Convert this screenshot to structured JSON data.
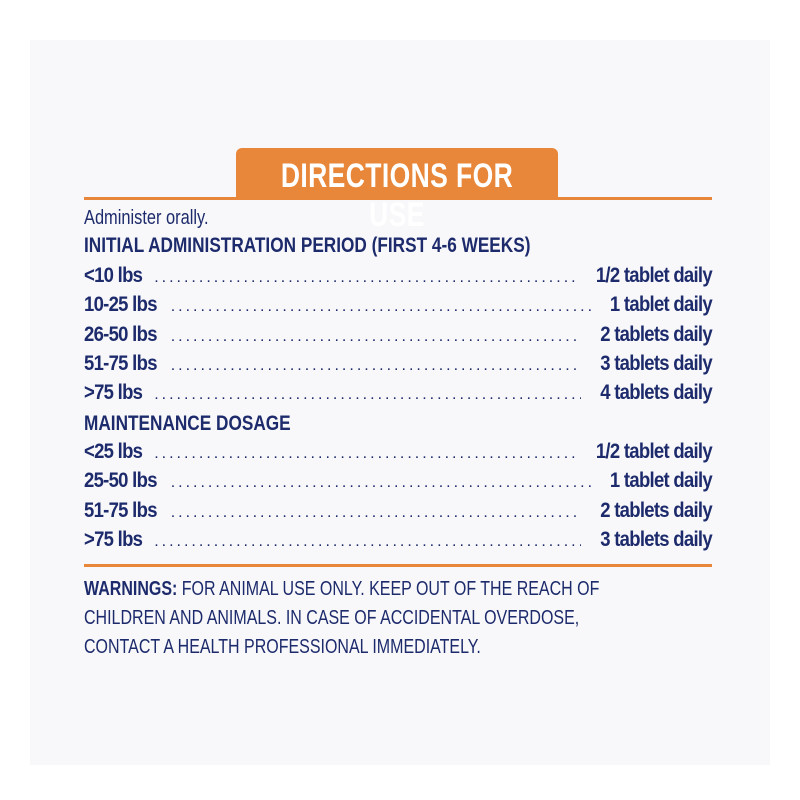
{
  "title": "DIRECTIONS FOR USE",
  "intro": "Administer orally.",
  "initial": {
    "heading": "INITIAL ADMINISTRATION PERIOD (FIRST 4-6 WEEKS)",
    "rows": [
      {
        "weight": "<10 lbs",
        "dose": "1/2 tablet daily"
      },
      {
        "weight": "10-25 lbs",
        "dose": "1 tablet daily"
      },
      {
        "weight": "26-50 lbs",
        "dose": "2 tablets daily"
      },
      {
        "weight": "51-75 lbs",
        "dose": "3 tablets daily"
      },
      {
        "weight": ">75 lbs",
        "dose": "4 tablets daily"
      }
    ]
  },
  "maintenance": {
    "heading": "MAINTENANCE DOSAGE",
    "rows": [
      {
        "weight": "<25 lbs",
        "dose": "1/2 tablet daily"
      },
      {
        "weight": "25-50 lbs",
        "dose": "1 tablet daily"
      },
      {
        "weight": "51-75 lbs",
        "dose": "2 tablets daily"
      },
      {
        "weight": ">75 lbs",
        "dose": "3 tablets daily"
      }
    ]
  },
  "warnings": {
    "label": "WARNINGS:",
    "lines": [
      " FOR ANIMAL USE ONLY. KEEP OUT OF THE REACH OF",
      "CHILDREN AND ANIMALS. IN CASE OF ACCIDENTAL OVERDOSE,",
      "CONTACT A HEALTH PROFESSIONAL IMMEDIATELY."
    ]
  },
  "colors": {
    "accent": "#e8873a",
    "text": "#1d2b6c"
  }
}
